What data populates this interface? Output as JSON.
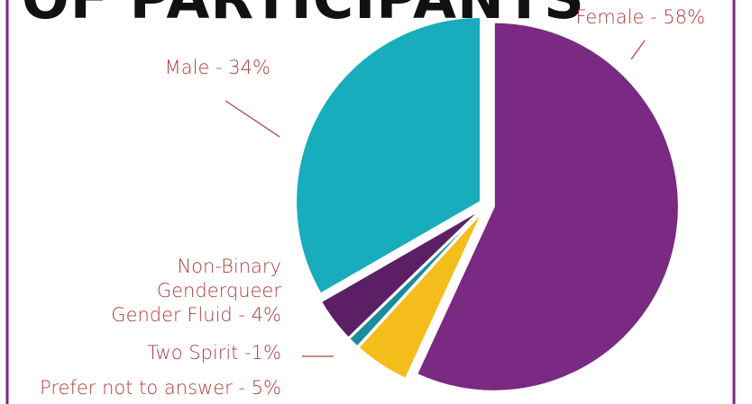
{
  "chart_data": {
    "type": "pie",
    "title": "OF PARTICIPANTS",
    "categories": [
      "Female - 58%",
      "Prefer not to answer - 5%",
      "Two Spirit -1%",
      "Non-Binary\nGenderqueer\nGender Fluid - 4%",
      "Male - 34%"
    ],
    "values": [
      58,
      5,
      1,
      4,
      34
    ],
    "colors": [
      "#7a2a82",
      "#f4bd1c",
      "#1b8c9c",
      "#5c1f66",
      "#18adbd"
    ]
  }
}
